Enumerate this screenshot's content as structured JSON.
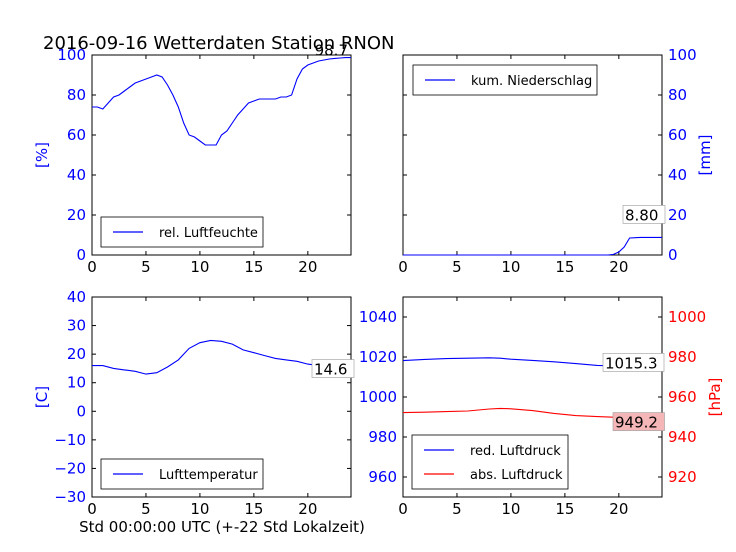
{
  "page": {
    "title": "2016-09-16 Wetterdaten Station RNON",
    "xlabel": "Std 00:00:00 UTC (+-22 Std Lokalzeit)"
  },
  "colors": {
    "blue": "#0000ff",
    "red": "#ff0000",
    "black": "#000000"
  },
  "chart_data": [
    {
      "id": "humidity",
      "type": "line",
      "xlim": [
        0,
        24
      ],
      "ylim": [
        0,
        100
      ],
      "xticks": [
        "0",
        "5",
        "10",
        "15",
        "20"
      ],
      "yticks": [
        "0",
        "20",
        "40",
        "60",
        "80",
        "100"
      ],
      "ylabel": "[%]",
      "legend": "rel. Luftfeuchte",
      "legend_position": "lower-center",
      "annotation": "98.7",
      "series": [
        {
          "name": "rel. Luftfeuchte",
          "color": "#0000ff",
          "x": [
            0,
            0.5,
            1,
            1.5,
            2,
            2.5,
            3,
            3.5,
            4,
            4.5,
            5,
            5.5,
            6,
            6.5,
            7,
            7.5,
            8,
            8.5,
            9,
            9.5,
            10,
            10.5,
            11,
            11.5,
            12,
            12.5,
            13,
            13.5,
            14,
            14.5,
            15,
            15.5,
            16,
            16.5,
            17,
            17.5,
            18,
            18.5,
            19,
            19.5,
            20,
            20.5,
            21,
            21.5,
            22,
            22.5,
            23,
            23.5,
            24
          ],
          "y": [
            74,
            74,
            73,
            76,
            79,
            80,
            82,
            84,
            86,
            87,
            88,
            89,
            90,
            89,
            85,
            80,
            74,
            66,
            60,
            59,
            57,
            55,
            55,
            55,
            60,
            62,
            66,
            70,
            73,
            76,
            77,
            78,
            78,
            78,
            78,
            79,
            79,
            80,
            88,
            93,
            95,
            96,
            97,
            97.5,
            98,
            98.3,
            98.5,
            98.7,
            98.7
          ]
        }
      ]
    },
    {
      "id": "precipitation",
      "type": "line",
      "xlim": [
        0,
        24
      ],
      "ylim": [
        0,
        100
      ],
      "xticks": [
        "0",
        "5",
        "10",
        "15",
        "20"
      ],
      "yticks": [
        "0",
        "20",
        "40",
        "60",
        "80",
        "100"
      ],
      "ylabel": "[mm]",
      "legend": "kum. Niederschlag",
      "legend_position": "upper-center",
      "annotation": "8.80",
      "series": [
        {
          "name": "kum. Niederschlag",
          "color": "#0000ff",
          "x": [
            0,
            19,
            19.5,
            20,
            20.5,
            21,
            22,
            23,
            24
          ],
          "y": [
            0,
            0,
            0.3,
            1.5,
            4,
            8.5,
            8.8,
            8.8,
            8.8
          ]
        }
      ]
    },
    {
      "id": "temperature",
      "type": "line",
      "xlim": [
        0,
        24
      ],
      "ylim": [
        -30,
        40
      ],
      "xticks": [
        "0",
        "5",
        "10",
        "15",
        "20"
      ],
      "yticks": [
        "−30",
        "−20",
        "−10",
        "0",
        "10",
        "20",
        "30",
        "40"
      ],
      "ylabel": "[C]",
      "legend": "Lufttemperatur",
      "legend_position": "lower-center",
      "annotation": "14.6",
      "series": [
        {
          "name": "Lufttemperatur",
          "color": "#0000ff",
          "x": [
            0,
            1,
            2,
            3,
            4,
            5,
            6,
            7,
            8,
            9,
            10,
            11,
            12,
            13,
            14,
            15,
            16,
            17,
            18,
            19,
            20,
            21,
            22,
            23,
            24
          ],
          "y": [
            16,
            16,
            15,
            14.5,
            14,
            13,
            13.5,
            15.5,
            18,
            22,
            24,
            24.8,
            24.5,
            23.5,
            21.5,
            20.5,
            19.5,
            18.5,
            18,
            17.5,
            16.5,
            16,
            15.5,
            15,
            14.6
          ]
        }
      ]
    },
    {
      "id": "pressure",
      "type": "line",
      "xlim": [
        0,
        24
      ],
      "ylim": [
        950,
        1050
      ],
      "ylim_right": [
        910,
        1010
      ],
      "xticks": [
        "0",
        "5",
        "10",
        "15",
        "20"
      ],
      "yticks": [
        "960",
        "980",
        "1000",
        "1020",
        "1040"
      ],
      "yticks_right": [
        "920",
        "940",
        "960",
        "980",
        "1000"
      ],
      "ylabel_right": "[hPa]",
      "legend": [
        "red. Luftdruck",
        "abs. Luftdruck"
      ],
      "legend_position": "lower-center",
      "annotation_left": "1015.3",
      "annotation_right": "949.2",
      "series": [
        {
          "name": "red. Luftdruck",
          "color": "#0000ff",
          "axis": "left",
          "x": [
            0,
            2,
            4,
            6,
            8,
            9,
            10,
            12,
            14,
            16,
            18,
            20,
            22,
            24
          ],
          "y": [
            1018.2,
            1018.8,
            1019.2,
            1019.4,
            1019.6,
            1019.4,
            1018.9,
            1018.3,
            1017.6,
            1016.7,
            1015.8,
            1015.5,
            1015.4,
            1015.3
          ]
        },
        {
          "name": "abs. Luftdruck",
          "color": "#ff0000",
          "axis": "right",
          "x": [
            0,
            2,
            4,
            6,
            8,
            9,
            10,
            12,
            14,
            16,
            18,
            20,
            22,
            24
          ],
          "y": [
            952.2,
            952.4,
            952.7,
            953.0,
            954.0,
            954.3,
            954.1,
            953.2,
            951.8,
            950.7,
            950.2,
            949.8,
            949.4,
            949.2
          ]
        }
      ]
    }
  ]
}
